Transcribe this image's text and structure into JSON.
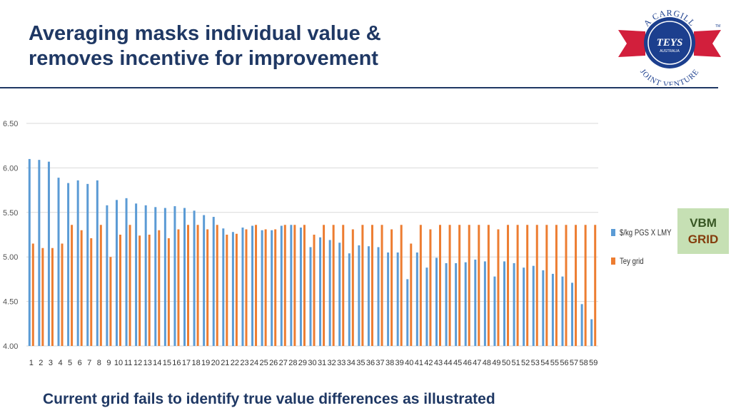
{
  "slide": {
    "title_line1": "Averaging masks individual value &",
    "title_line2": "removes incentive for improvement",
    "footer": "Current grid fails to identify true value differences as illustrated",
    "vbm_line1": "VBM",
    "vbm_line2": "GRID"
  },
  "logo": {
    "arc_top": "A CARGILL",
    "brand": "TEYS",
    "sub": "AUSTRALIA",
    "arc_bottom": "JOINT VENTURE",
    "tm": "TM",
    "colors": {
      "ribbon": "#d21f3c",
      "seal": "#1c3f8e"
    }
  },
  "chart_data": {
    "type": "bar",
    "categories": [
      "1",
      "2",
      "3",
      "4",
      "5",
      "6",
      "7",
      "8",
      "9",
      "10",
      "11",
      "12",
      "13",
      "14",
      "15",
      "16",
      "17",
      "18",
      "19",
      "20",
      "21",
      "22",
      "23",
      "24",
      "25",
      "26",
      "27",
      "28",
      "29",
      "30",
      "31",
      "32",
      "33",
      "34",
      "35",
      "36",
      "37",
      "38",
      "39",
      "40",
      "41",
      "42",
      "43",
      "44",
      "45",
      "46",
      "47",
      "48",
      "49",
      "50",
      "51",
      "52",
      "53",
      "54",
      "55",
      "56",
      "57",
      "58",
      "59"
    ],
    "series": [
      {
        "name": "$/kg PGS X LMY",
        "color": "#5b9bd5",
        "values": [
          6.1,
          6.09,
          6.07,
          5.89,
          5.83,
          5.86,
          5.82,
          5.86,
          5.58,
          5.64,
          5.66,
          5.6,
          5.58,
          5.56,
          5.55,
          5.57,
          5.55,
          5.52,
          5.47,
          5.45,
          5.32,
          5.28,
          5.33,
          5.35,
          5.3,
          5.3,
          5.35,
          5.36,
          5.33,
          5.11,
          5.22,
          5.19,
          5.16,
          5.04,
          5.13,
          5.12,
          5.11,
          5.05,
          5.05,
          4.75,
          5.05,
          4.88,
          4.99,
          4.93,
          4.93,
          4.94,
          4.97,
          4.95,
          4.78,
          4.95,
          4.93,
          4.88,
          4.9,
          4.85,
          4.81,
          4.78,
          4.71,
          4.47,
          4.3
        ]
      },
      {
        "name": "Tey grid",
        "color": "#ed7d31",
        "values": [
          5.15,
          5.1,
          5.1,
          5.15,
          5.36,
          5.3,
          5.21,
          5.36,
          5.0,
          5.25,
          5.36,
          5.24,
          5.25,
          5.3,
          5.21,
          5.31,
          5.36,
          5.36,
          5.31,
          5.36,
          5.25,
          5.26,
          5.31,
          5.36,
          5.31,
          5.31,
          5.36,
          5.36,
          5.36,
          5.25,
          5.36,
          5.36,
          5.36,
          5.31,
          5.36,
          5.36,
          5.36,
          5.31,
          5.36,
          5.15,
          5.36,
          5.31,
          5.36,
          5.36,
          5.36,
          5.36,
          5.36,
          5.36,
          5.31,
          5.36,
          5.36,
          5.36,
          5.36,
          5.36,
          5.36,
          5.36,
          5.36,
          5.36,
          5.36
        ]
      }
    ],
    "yticks": [
      "4.00",
      "4.50",
      "5.00",
      "5.50",
      "6.00",
      "6.50"
    ],
    "ylim": [
      4.0,
      6.5
    ],
    "grid": true,
    "legend": "right"
  }
}
